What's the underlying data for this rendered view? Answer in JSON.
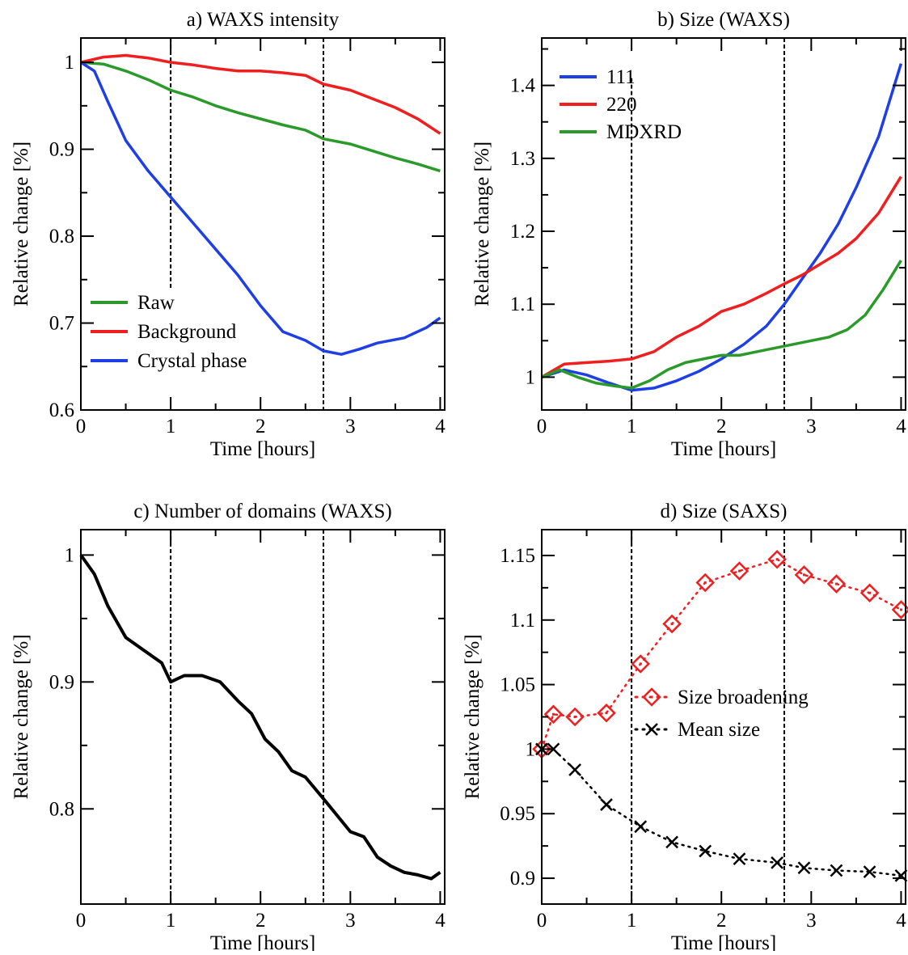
{
  "colors": {
    "blue": "#1f3fe6",
    "red": "#f01e1e",
    "green": "#2a9a2a",
    "black": "#000000"
  },
  "chart_data": [
    {
      "id": "a",
      "type": "line",
      "title": "a) WAXS intensity",
      "xlabel": "Time [hours]",
      "ylabel": "Relative change [%]",
      "xlim": [
        0,
        4.05
      ],
      "ylim": [
        0.6,
        1.028
      ],
      "xticks": [
        0,
        1,
        2,
        3,
        4
      ],
      "xtick_labels": [
        "0",
        "1",
        "2",
        "3",
        "4"
      ],
      "yticks": [
        0.6,
        0.7,
        0.8,
        0.9,
        1.0
      ],
      "ytick_labels": [
        "0.6",
        "0.7",
        "0.8",
        "0.9",
        "1"
      ],
      "vlines": [
        {
          "x": 1.0,
          "y0": 0.74,
          "y1": 1.028
        },
        {
          "x": 2.7,
          "y0": 0.6,
          "y1": 1.028
        }
      ],
      "legend": {
        "position": "bottom-left",
        "entries": [
          "Raw",
          "Background",
          "Crystal phase"
        ]
      },
      "series": [
        {
          "name": "Raw",
          "color": "#2a9a2a",
          "x": [
            0,
            0.25,
            0.5,
            0.75,
            1.0,
            1.25,
            1.5,
            1.75,
            2.0,
            2.25,
            2.5,
            2.7,
            3.0,
            3.25,
            3.5,
            3.75,
            4.0
          ],
          "y": [
            1.0,
            0.998,
            0.99,
            0.98,
            0.968,
            0.96,
            0.95,
            0.942,
            0.935,
            0.928,
            0.922,
            0.912,
            0.906,
            0.898,
            0.89,
            0.883,
            0.875
          ]
        },
        {
          "name": "Background",
          "color": "#f01e1e",
          "x": [
            0,
            0.25,
            0.5,
            0.75,
            1.0,
            1.25,
            1.5,
            1.75,
            2.0,
            2.25,
            2.5,
            2.7,
            3.0,
            3.25,
            3.5,
            3.75,
            4.0
          ],
          "y": [
            1.0,
            1.006,
            1.008,
            1.005,
            1.0,
            0.997,
            0.993,
            0.99,
            0.99,
            0.988,
            0.985,
            0.975,
            0.968,
            0.958,
            0.948,
            0.935,
            0.918
          ]
        },
        {
          "name": "Crystal phase",
          "color": "#1f3fe6",
          "x": [
            0,
            0.15,
            0.3,
            0.5,
            0.75,
            1.0,
            1.25,
            1.5,
            1.75,
            2.0,
            2.25,
            2.5,
            2.7,
            2.9,
            3.1,
            3.3,
            3.6,
            3.85,
            4.0
          ],
          "y": [
            1.0,
            0.99,
            0.955,
            0.91,
            0.875,
            0.845,
            0.815,
            0.785,
            0.755,
            0.72,
            0.69,
            0.68,
            0.668,
            0.664,
            0.67,
            0.677,
            0.683,
            0.695,
            0.706
          ]
        }
      ]
    },
    {
      "id": "b",
      "type": "line",
      "title": "b) Size (WAXS)",
      "xlabel": "Time [hours]",
      "ylabel": "Relative change [%]",
      "xlim": [
        0,
        4.05
      ],
      "ylim": [
        0.955,
        1.465
      ],
      "xticks": [
        0,
        1,
        2,
        3,
        4
      ],
      "xtick_labels": [
        "0",
        "1",
        "2",
        "3",
        "4"
      ],
      "yticks": [
        1.0,
        1.1,
        1.2,
        1.3,
        1.4
      ],
      "ytick_labels": [
        "1",
        "1.1",
        "1.2",
        "1.3",
        "1.4"
      ],
      "vlines": [
        {
          "x": 1.0,
          "y0": 0.955,
          "y1": 1.41
        },
        {
          "x": 2.7,
          "y0": 0.955,
          "y1": 1.465
        }
      ],
      "legend": {
        "position": "top-left",
        "entries": [
          "111",
          "220",
          "MDXRD"
        ]
      },
      "series": [
        {
          "name": "111",
          "color": "#1f3fe6",
          "x": [
            0,
            0.25,
            0.5,
            0.75,
            1.0,
            1.25,
            1.5,
            1.75,
            2.0,
            2.25,
            2.5,
            2.7,
            2.9,
            3.1,
            3.3,
            3.5,
            3.75,
            4.0
          ],
          "y": [
            1.0,
            1.01,
            1.003,
            0.992,
            0.982,
            0.985,
            0.995,
            1.008,
            1.025,
            1.045,
            1.07,
            1.1,
            1.135,
            1.17,
            1.21,
            1.26,
            1.33,
            1.43
          ]
        },
        {
          "name": "220",
          "color": "#f01e1e",
          "x": [
            0,
            0.25,
            0.5,
            0.75,
            1.0,
            1.25,
            1.5,
            1.75,
            2.0,
            2.25,
            2.5,
            2.7,
            2.9,
            3.1,
            3.3,
            3.5,
            3.75,
            4.0
          ],
          "y": [
            1.0,
            1.018,
            1.02,
            1.022,
            1.025,
            1.035,
            1.055,
            1.07,
            1.09,
            1.1,
            1.115,
            1.128,
            1.14,
            1.155,
            1.17,
            1.19,
            1.225,
            1.275
          ]
        },
        {
          "name": "MDXRD",
          "color": "#2a9a2a",
          "x": [
            0,
            0.2,
            0.4,
            0.6,
            0.8,
            1.0,
            1.2,
            1.4,
            1.6,
            1.8,
            2.0,
            2.2,
            2.4,
            2.6,
            2.8,
            3.0,
            3.2,
            3.4,
            3.6,
            3.8,
            4.0
          ],
          "y": [
            1.0,
            1.01,
            1.0,
            0.992,
            0.988,
            0.985,
            0.995,
            1.01,
            1.02,
            1.025,
            1.03,
            1.03,
            1.035,
            1.04,
            1.045,
            1.05,
            1.055,
            1.065,
            1.085,
            1.12,
            1.16
          ]
        }
      ]
    },
    {
      "id": "c",
      "type": "line",
      "title": "c) Number of domains (WAXS)",
      "xlabel": "Time [hours]",
      "ylabel": "Relative change [%]",
      "xlim": [
        0,
        4.05
      ],
      "ylim": [
        0.725,
        1.02
      ],
      "xticks": [
        0,
        1,
        2,
        3,
        4
      ],
      "xtick_labels": [
        "0",
        "1",
        "2",
        "3",
        "4"
      ],
      "yticks": [
        0.8,
        0.9,
        1.0
      ],
      "ytick_labels": [
        "0.8",
        "0.9",
        "1"
      ],
      "vlines": [
        {
          "x": 1.0,
          "y0": 0.725,
          "y1": 1.02
        },
        {
          "x": 2.7,
          "y0": 0.725,
          "y1": 1.02
        }
      ],
      "series": [
        {
          "name": "",
          "color": "#000000",
          "x": [
            0,
            0.15,
            0.3,
            0.5,
            0.7,
            0.9,
            1.0,
            1.15,
            1.35,
            1.55,
            1.75,
            1.9,
            2.05,
            2.2,
            2.35,
            2.5,
            2.7,
            2.85,
            3.0,
            3.15,
            3.3,
            3.45,
            3.6,
            3.75,
            3.9,
            4.0
          ],
          "y": [
            1.0,
            0.985,
            0.96,
            0.935,
            0.925,
            0.915,
            0.9,
            0.905,
            0.905,
            0.9,
            0.885,
            0.875,
            0.855,
            0.845,
            0.83,
            0.825,
            0.808,
            0.795,
            0.782,
            0.778,
            0.762,
            0.755,
            0.75,
            0.748,
            0.745,
            0.75
          ]
        }
      ]
    },
    {
      "id": "d",
      "type": "scatter",
      "title": "d) Size (SAXS)",
      "xlabel": "Time [hours]",
      "ylabel": "Relative change [%]",
      "xlim": [
        0,
        4.05
      ],
      "ylim": [
        0.88,
        1.17
      ],
      "xticks": [
        0,
        1,
        2,
        3,
        4
      ],
      "xtick_labels": [
        "0",
        "1",
        "2",
        "3",
        "4"
      ],
      "yticks": [
        0.9,
        0.95,
        1.0,
        1.05,
        1.1,
        1.15
      ],
      "ytick_labels": [
        "0.9",
        "0.95",
        "1",
        "1.05",
        "1.1",
        "1.15"
      ],
      "vlines": [
        {
          "x": 1.0,
          "y0": 0.88,
          "y1": 1.17
        },
        {
          "x": 2.7,
          "y0": 0.88,
          "y1": 1.17
        }
      ],
      "legend": {
        "position": "center-right",
        "entries": [
          "Size broadening",
          "Mean size"
        ]
      },
      "series": [
        {
          "name": "Size broadening",
          "color": "#f01e1e",
          "marker": "diamond",
          "x": [
            0.0,
            0.13,
            0.37,
            0.72,
            1.1,
            1.45,
            1.82,
            2.2,
            2.62,
            2.92,
            3.28,
            3.65,
            4.0
          ],
          "y": [
            1.0,
            1.027,
            1.025,
            1.028,
            1.066,
            1.097,
            1.129,
            1.138,
            1.147,
            1.135,
            1.128,
            1.121,
            1.108
          ]
        },
        {
          "name": "Mean size",
          "color": "#000000",
          "marker": "cross",
          "x": [
            0.0,
            0.13,
            0.37,
            0.72,
            1.1,
            1.45,
            1.82,
            2.2,
            2.62,
            2.92,
            3.28,
            3.65,
            4.0
          ],
          "y": [
            1.0,
            1.0,
            0.984,
            0.957,
            0.94,
            0.928,
            0.921,
            0.915,
            0.912,
            0.908,
            0.906,
            0.905,
            0.902
          ]
        }
      ]
    }
  ]
}
